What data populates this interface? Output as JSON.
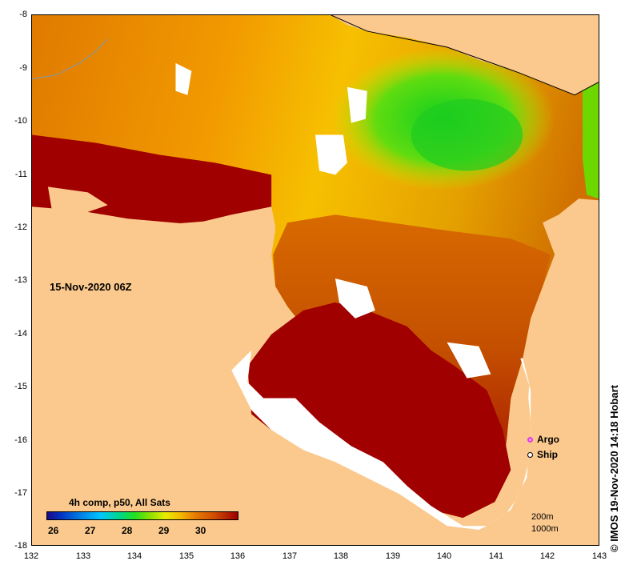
{
  "map": {
    "date_label": "15-Nov-2020 06Z",
    "x_ticks": [
      "132",
      "133",
      "134",
      "135",
      "136",
      "137",
      "138",
      "139",
      "140",
      "141",
      "142",
      "143"
    ],
    "y_ticks": [
      "-8",
      "-9",
      "-10",
      "-11",
      "-12",
      "-13",
      "-14",
      "-15",
      "-16",
      "-17",
      "-18"
    ],
    "colors": {
      "land": "#fbc98d",
      "warm_sst": "#a00000",
      "mid_sst": "#d96a00",
      "cool_sst": "#22d022",
      "no_data": "#ffffff"
    }
  },
  "legend": {
    "title": "4h comp, p50, All Sats",
    "colorbar_labels": [
      "26",
      "27",
      "28",
      "29",
      "30"
    ]
  },
  "markers": {
    "argo": "Argo",
    "ship": "Ship"
  },
  "scale": {
    "line1": "200m",
    "line2": "1000m"
  },
  "credit": "© IMOS 19-Nov-2020 14:18 Hobart"
}
